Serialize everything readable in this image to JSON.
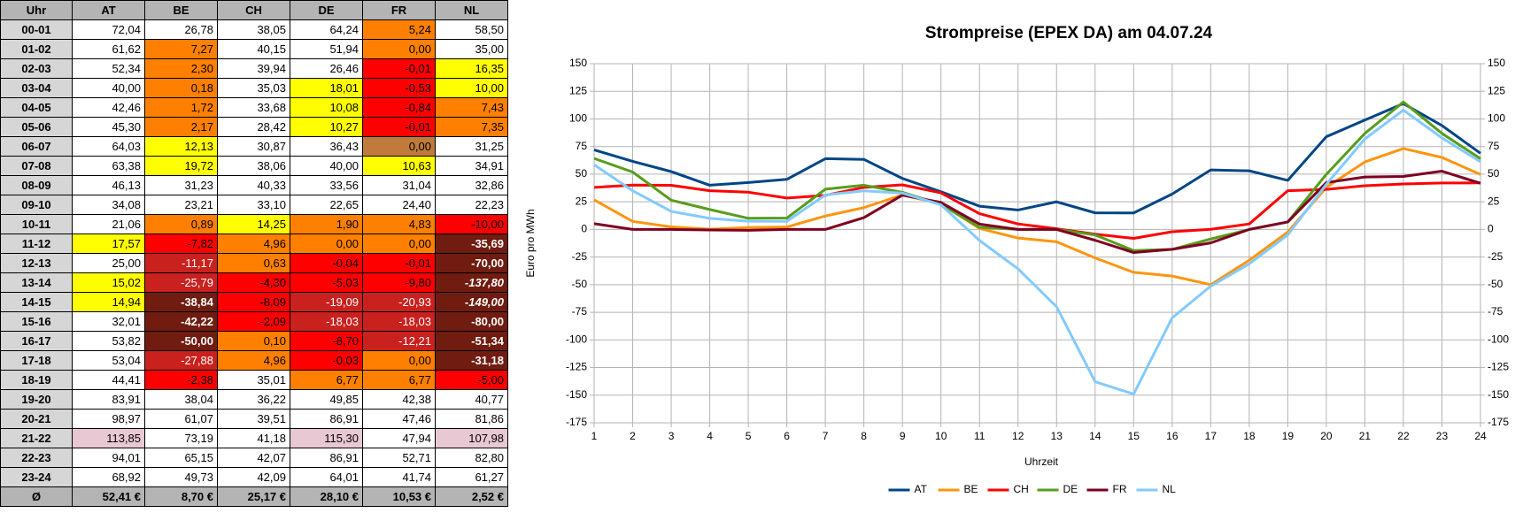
{
  "table": {
    "columns": [
      "Uhr",
      "AT",
      "BE",
      "CH",
      "DE",
      "FR",
      "NL"
    ],
    "rows": [
      [
        "00-01",
        "72,04",
        "26,78",
        "38,05",
        "64,24",
        "5,24",
        "58,50"
      ],
      [
        "01-02",
        "61,62",
        "7,27",
        "40,15",
        "51,94",
        "0,00",
        "35,00"
      ],
      [
        "02-03",
        "52,34",
        "2,30",
        "39,94",
        "26,46",
        "-0,01",
        "16,35"
      ],
      [
        "03-04",
        "40,00",
        "0,18",
        "35,03",
        "18,01",
        "-0,53",
        "10,00"
      ],
      [
        "04-05",
        "42,46",
        "1,72",
        "33,68",
        "10,08",
        "-0,84",
        "7,43"
      ],
      [
        "05-06",
        "45,30",
        "2,17",
        "28,42",
        "10,27",
        "-0,01",
        "7,35"
      ],
      [
        "06-07",
        "64,03",
        "12,13",
        "30,87",
        "36,43",
        "0,00",
        "31,25"
      ],
      [
        "07-08",
        "63,38",
        "19,72",
        "38,06",
        "40,00",
        "10,63",
        "34,91"
      ],
      [
        "08-09",
        "46,13",
        "31,23",
        "40,33",
        "33,56",
        "31,04",
        "32,86"
      ],
      [
        "09-10",
        "34,08",
        "23,21",
        "33,10",
        "22,65",
        "24,40",
        "22,23"
      ],
      [
        "10-11",
        "21,06",
        "0,89",
        "14,25",
        "1,90",
        "4,83",
        "-10,00"
      ],
      [
        "11-12",
        "17,57",
        "-7,82",
        "4,96",
        "0,00",
        "0,00",
        "-35,69"
      ],
      [
        "12-13",
        "25,00",
        "-11,17",
        "0,63",
        "-0,04",
        "-0,01",
        "-70,00"
      ],
      [
        "13-14",
        "15,02",
        "-25,79",
        "-4,30",
        "-5,03",
        "-9,80",
        "-137,80"
      ],
      [
        "14-15",
        "14,94",
        "-38,84",
        "-8,09",
        "-19,09",
        "-20,93",
        "-149,00"
      ],
      [
        "15-16",
        "32,01",
        "-42,22",
        "-2,09",
        "-18,03",
        "-18,03",
        "-80,00"
      ],
      [
        "16-17",
        "53,82",
        "-50,00",
        "0,10",
        "-8,70",
        "-12,21",
        "-51,34"
      ],
      [
        "17-18",
        "53,04",
        "-27,88",
        "4,96",
        "-0,03",
        "0,00",
        "-31,18"
      ],
      [
        "18-19",
        "44,41",
        "-2,38",
        "35,01",
        "6,77",
        "6,77",
        "-5,00"
      ],
      [
        "19-20",
        "83,91",
        "38,04",
        "36,22",
        "49,85",
        "42,38",
        "40,77"
      ],
      [
        "20-21",
        "98,97",
        "61,07",
        "39,51",
        "86,91",
        "47,46",
        "81,86"
      ],
      [
        "21-22",
        "113,85",
        "73,19",
        "41,18",
        "115,30",
        "47,94",
        "107,98"
      ],
      [
        "22-23",
        "94,01",
        "65,15",
        "42,07",
        "86,91",
        "52,71",
        "82,80"
      ],
      [
        "23-24",
        "68,92",
        "49,73",
        "42,09",
        "64,01",
        "41,74",
        "61,27"
      ]
    ],
    "footer": [
      "Ø",
      "52,41 €",
      "8,70 €",
      "25,17 €",
      "28,10 €",
      "10,53 €",
      "2,52 €"
    ],
    "cell_codes": [
      "wwwwow",
      "wowwow",
      "wowwry",
      "wowyry",
      "wowyro",
      "wowyro",
      "wywwsw",
      "wywwyw",
      "wwwwww",
      "wwwwww",
      "woyoor",
      "yrooob",
      "wdorrb",
      "ydrrri",
      "ybrddi",
      "wbrddb",
      "wbordb",
      "wdorob",
      "wrwoor",
      "wwwwww",
      "wwwwww",
      "pwwpwp",
      "wwwwww",
      "wwwwww"
    ],
    "cell_styles": {
      "w": {
        "bg": "#ffffff",
        "fg": "#000000",
        "weight": "normal",
        "style": "normal"
      },
      "y": {
        "bg": "#ffff00",
        "fg": "#000000",
        "weight": "normal",
        "style": "normal"
      },
      "o": {
        "bg": "#ff8000",
        "fg": "#000000",
        "weight": "normal",
        "style": "normal"
      },
      "s": {
        "bg": "#c07a3c",
        "fg": "#000000",
        "weight": "normal",
        "style": "normal"
      },
      "r": {
        "bg": "#ff0000",
        "fg": "#000000",
        "weight": "normal",
        "style": "normal"
      },
      "d": {
        "bg": "#c9211e",
        "fg": "#ffffff",
        "weight": "normal",
        "style": "normal"
      },
      "b": {
        "bg": "#701c10",
        "fg": "#ffffff",
        "weight": "bold",
        "style": "normal"
      },
      "i": {
        "bg": "#701c10",
        "fg": "#ffffff",
        "weight": "bold",
        "style": "italic"
      },
      "p": {
        "bg": "#e8c8d2",
        "fg": "#000000",
        "weight": "normal",
        "style": "normal"
      }
    }
  },
  "chart_data": {
    "type": "line",
    "title": "Strompreise (EPEX DA) am 04.07.24",
    "x_label": "Uhrzeit",
    "y_label": "Euro pro MWh",
    "x": [
      1,
      2,
      3,
      4,
      5,
      6,
      7,
      8,
      9,
      10,
      11,
      12,
      13,
      14,
      15,
      16,
      17,
      18,
      19,
      20,
      21,
      22,
      23,
      24
    ],
    "xlim": [
      1,
      24
    ],
    "xticks": [
      1,
      2,
      3,
      4,
      5,
      6,
      7,
      8,
      9,
      10,
      11,
      12,
      13,
      14,
      15,
      16,
      17,
      18,
      19,
      20,
      21,
      22,
      23,
      24
    ],
    "ylim": [
      -175,
      150
    ],
    "yticks": [
      -175,
      -150,
      -125,
      -100,
      -75,
      -50,
      -25,
      0,
      25,
      50,
      75,
      100,
      125,
      150
    ],
    "y2lim": [
      -175,
      150
    ],
    "y2ticks": [
      -175,
      -150,
      -125,
      -100,
      -75,
      -50,
      -25,
      0,
      25,
      50,
      75,
      100,
      125,
      150
    ],
    "grid": true,
    "legend": "bottom",
    "series": [
      {
        "name": "AT",
        "color": "#004586",
        "values": [
          72.04,
          61.62,
          52.34,
          40.0,
          42.46,
          45.3,
          64.03,
          63.38,
          46.13,
          34.08,
          21.06,
          17.57,
          25.0,
          15.02,
          14.94,
          32.01,
          53.82,
          53.04,
          44.41,
          83.91,
          98.97,
          113.85,
          94.01,
          68.92
        ]
      },
      {
        "name": "BE",
        "color": "#ff950e",
        "values": [
          26.78,
          7.27,
          2.3,
          0.18,
          1.72,
          2.17,
          12.13,
          19.72,
          31.23,
          23.21,
          0.89,
          -7.82,
          -11.17,
          -25.79,
          -38.84,
          -42.22,
          -50.0,
          -27.88,
          -2.38,
          38.04,
          61.07,
          73.19,
          65.15,
          49.73
        ]
      },
      {
        "name": "CH",
        "color": "#ff0000",
        "values": [
          38.05,
          40.15,
          39.94,
          35.03,
          33.68,
          28.42,
          30.87,
          38.06,
          40.33,
          33.1,
          14.25,
          4.96,
          0.63,
          -4.3,
          -8.09,
          -2.09,
          0.1,
          4.96,
          35.01,
          36.22,
          39.51,
          41.18,
          42.07,
          42.09
        ]
      },
      {
        "name": "DE",
        "color": "#579d1c",
        "values": [
          64.24,
          51.94,
          26.46,
          18.01,
          10.08,
          10.27,
          36.43,
          40.0,
          33.56,
          22.65,
          1.9,
          0.0,
          -0.04,
          -5.03,
          -19.09,
          -18.03,
          -8.7,
          -0.03,
          6.77,
          49.85,
          86.91,
          115.3,
          86.91,
          64.01
        ]
      },
      {
        "name": "FR",
        "color": "#7e0021",
        "values": [
          5.24,
          0.0,
          -0.01,
          -0.53,
          -0.84,
          -0.01,
          0.0,
          10.63,
          31.04,
          24.4,
          4.83,
          0.0,
          -0.01,
          -9.8,
          -20.93,
          -18.03,
          -12.21,
          0.0,
          6.77,
          42.38,
          47.46,
          47.94,
          52.71,
          41.74
        ]
      },
      {
        "name": "NL",
        "color": "#83caff",
        "values": [
          58.5,
          35.0,
          16.35,
          10.0,
          7.43,
          7.35,
          31.25,
          34.91,
          32.86,
          22.23,
          -10.0,
          -35.69,
          -70.0,
          -137.8,
          -149.0,
          -80.0,
          -51.34,
          -31.18,
          -5.0,
          40.77,
          81.86,
          107.98,
          82.8,
          61.27
        ]
      }
    ]
  }
}
